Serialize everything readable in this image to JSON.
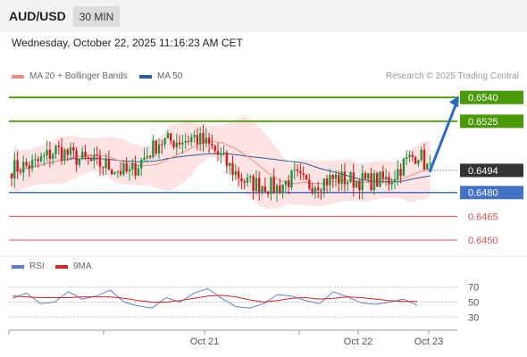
{
  "header": {
    "symbol": "AUD/USD",
    "timeframe": "30 MIN",
    "datetime": "Wednesday, October 22, 2025 11:16:23 AM CET"
  },
  "legend": {
    "ma20_bb": {
      "label": "MA 20 + Bollinger Bands",
      "color": "#f28b82"
    },
    "ma50": {
      "label": "MA 50",
      "color": "#2e5b99"
    }
  },
  "credit": "Research © 2025 Trading Central",
  "colors": {
    "bull": "#1a9641",
    "bear": "#d7191c",
    "resistance": "#4a9a06",
    "support": "#4472c4",
    "target": "#e05050",
    "arrow": "#2a6bbf",
    "bollinger_fill": "#fde3e3"
  },
  "chart_data": [
    {
      "type": "candlestick",
      "ylim": [
        0.6441,
        0.6548
      ],
      "x_ticks": [
        "Oct 21",
        "Oct 22",
        "Oct 23"
      ],
      "current_price": "0.6494",
      "levels": [
        {
          "value": "0.6540",
          "kind": "resistance",
          "style": "badge"
        },
        {
          "value": "0.6525",
          "kind": "resistance",
          "style": "badge"
        },
        {
          "value": "0.6480",
          "kind": "pivot",
          "style": "badge"
        },
        {
          "value": "0.6465",
          "kind": "support",
          "style": "text"
        },
        {
          "value": "0.6450",
          "kind": "support",
          "style": "text"
        }
      ],
      "forecast_arrow": {
        "from": 0.6493,
        "to": 0.6541
      },
      "key_points": [
        {
          "index": 0,
          "price": 0.6495
        },
        {
          "index": 8,
          "price": 0.6498
        },
        {
          "index": 15,
          "price": 0.6507
        },
        {
          "index": 25,
          "price": 0.65
        },
        {
          "index": 32,
          "price": 0.6497
        },
        {
          "index": 40,
          "price": 0.6492
        },
        {
          "index": 50,
          "price": 0.6512
        },
        {
          "index": 58,
          "price": 0.6513
        },
        {
          "index": 62,
          "price": 0.6515
        },
        {
          "index": 68,
          "price": 0.6508
        },
        {
          "index": 75,
          "price": 0.6494
        },
        {
          "index": 80,
          "price": 0.6486
        },
        {
          "index": 85,
          "price": 0.6485
        },
        {
          "index": 90,
          "price": 0.6483
        },
        {
          "index": 96,
          "price": 0.649
        },
        {
          "index": 100,
          "price": 0.6485
        },
        {
          "index": 110,
          "price": 0.6489
        },
        {
          "index": 120,
          "price": 0.6487
        },
        {
          "index": 128,
          "price": 0.6488
        },
        {
          "index": 134,
          "price": 0.65
        },
        {
          "index": 138,
          "price": 0.6505
        },
        {
          "index": 141,
          "price": 0.6496
        },
        {
          "index": 142,
          "price": 0.6494
        }
      ]
    },
    {
      "type": "line",
      "legend": [
        {
          "label": "RSI",
          "color": "#5b7fd6"
        },
        {
          "label": "9MA",
          "color": "#e02020"
        }
      ],
      "ylim": [
        22,
        78
      ],
      "y_ticks": [
        "70",
        "50",
        "30"
      ],
      "series": [
        {
          "name": "RSI",
          "values": [
            55,
            62,
            48,
            50,
            64,
            54,
            58,
            66,
            50,
            45,
            42,
            56,
            50,
            62,
            68,
            55,
            44,
            42,
            48,
            60,
            58,
            52,
            48,
            64,
            57,
            49,
            47,
            50,
            54,
            46
          ]
        },
        {
          "name": "9MA",
          "values": [
            58,
            57,
            56,
            56,
            56,
            57,
            57,
            57,
            55,
            52,
            50,
            50,
            52,
            55,
            58,
            59,
            57,
            53,
            50,
            52,
            55,
            56,
            54,
            55,
            57,
            56,
            54,
            52,
            51,
            51
          ]
        }
      ]
    }
  ]
}
